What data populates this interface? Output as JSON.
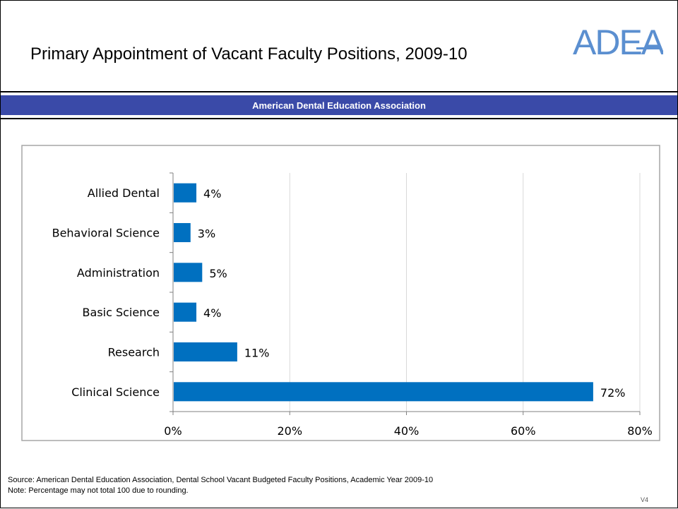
{
  "slide": {
    "title": "Primary Appointment of Vacant Faculty Positions,  2009-10",
    "banner": "American Dental Education Association",
    "logo_text": "ADEA",
    "source_note": "Source: American Dental Education Association, Dental School Vacant Budgeted Faculty Positions, Academic Year 2009-10",
    "rounding_note": "Note: Percentage may not total 100  due to rounding.",
    "version": "V4"
  },
  "colors": {
    "banner": "#3a4aa8",
    "bar": "#0070c0",
    "logo": "#5b8fd0",
    "grid": "#d9d9d9"
  },
  "chart_data": {
    "type": "bar",
    "orientation": "horizontal",
    "categories": [
      "Allied Dental",
      "Behavioral Science",
      "Administration",
      "Basic Science",
      "Research",
      "Clinical Science"
    ],
    "values": [
      4,
      3,
      5,
      4,
      11,
      72
    ],
    "data_labels": [
      "4%",
      "3%",
      "5%",
      "4%",
      "11%",
      "72%"
    ],
    "x_ticks": [
      0,
      20,
      40,
      60,
      80
    ],
    "x_tick_labels": [
      "0%",
      "20%",
      "40%",
      "60%",
      "80%"
    ],
    "xlim": [
      0,
      80
    ],
    "title": "",
    "xlabel": "",
    "ylabel": "",
    "grid": "vertical",
    "legend": "none"
  }
}
